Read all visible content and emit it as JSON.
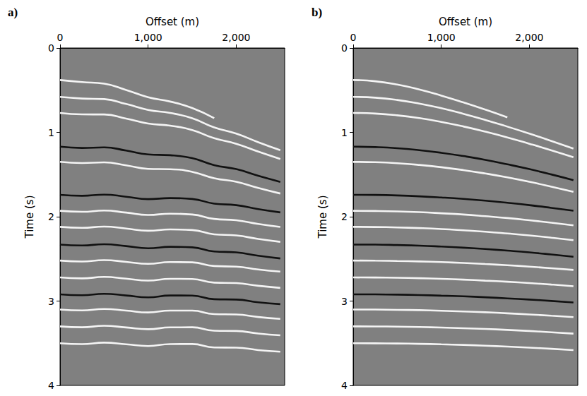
{
  "chart_data": [
    {
      "type": "line",
      "title": "a)",
      "xlabel": "Offset (m)",
      "ylabel": "Time (s)",
      "x": [
        0,
        250,
        500,
        750,
        1000,
        1250,
        1500,
        1750,
        2000,
        2250,
        2500
      ],
      "xlim": [
        0,
        2550
      ],
      "xticks": [
        0,
        1000,
        2000
      ],
      "ylim": [
        0,
        4
      ],
      "yticks": [
        0,
        1,
        2,
        3,
        4
      ],
      "grid": false,
      "series": [
        {
          "color": "#f4f4f4",
          "values": [
            0.38,
            0.404,
            0.423,
            0.497,
            0.584,
            0.635,
            0.711,
            0.832,
            null,
            null,
            null
          ]
        },
        {
          "color": "#f4f4f4",
          "values": [
            0.58,
            0.599,
            0.606,
            0.664,
            0.734,
            0.77,
            0.833,
            0.942,
            1.015,
            1.117,
            1.212
          ]
        },
        {
          "color": "#f4f4f4",
          "values": [
            0.77,
            0.787,
            0.788,
            0.836,
            0.896,
            0.92,
            0.972,
            1.07,
            1.135,
            1.228,
            1.315
          ]
        },
        {
          "color": "#111111",
          "values": [
            1.17,
            1.185,
            1.178,
            1.216,
            1.262,
            1.271,
            1.306,
            1.389,
            1.436,
            1.514,
            1.587
          ]
        },
        {
          "color": "#f4f4f4",
          "values": [
            1.35,
            1.364,
            1.356,
            1.391,
            1.433,
            1.437,
            1.468,
            1.544,
            1.586,
            1.659,
            1.725
          ]
        },
        {
          "color": "#111111",
          "values": [
            1.74,
            1.752,
            1.738,
            1.763,
            1.792,
            1.779,
            1.79,
            1.845,
            1.863,
            1.91,
            1.949
          ]
        },
        {
          "color": "#f4f4f4",
          "values": [
            1.93,
            1.942,
            1.927,
            1.951,
            1.979,
            1.964,
            1.974,
            2.026,
            2.042,
            2.086,
            2.122
          ]
        },
        {
          "color": "#f4f4f4",
          "values": [
            2.12,
            2.132,
            2.117,
            2.14,
            2.166,
            2.151,
            2.158,
            2.209,
            2.222,
            2.264,
            2.298
          ]
        },
        {
          "color": "#111111",
          "values": [
            2.33,
            2.341,
            2.326,
            2.348,
            2.374,
            2.357,
            2.363,
            2.412,
            2.423,
            2.463,
            2.495
          ]
        },
        {
          "color": "#f4f4f4",
          "values": [
            2.52,
            2.531,
            2.515,
            2.535,
            2.558,
            2.538,
            2.541,
            2.585,
            2.592,
            2.626,
            2.651
          ]
        },
        {
          "color": "#f4f4f4",
          "values": [
            2.72,
            2.731,
            2.714,
            2.734,
            2.757,
            2.736,
            2.738,
            2.781,
            2.787,
            2.819,
            2.844
          ]
        },
        {
          "color": "#111111",
          "values": [
            2.92,
            2.931,
            2.914,
            2.934,
            2.956,
            2.934,
            2.935,
            2.978,
            2.982,
            3.014,
            3.037
          ]
        },
        {
          "color": "#f4f4f4",
          "values": [
            3.1,
            3.111,
            3.094,
            3.113,
            3.135,
            3.113,
            3.113,
            3.155,
            3.159,
            3.189,
            3.211
          ]
        },
        {
          "color": "#f4f4f4",
          "values": [
            3.3,
            3.311,
            3.293,
            3.313,
            3.334,
            3.312,
            3.311,
            3.352,
            3.355,
            3.385,
            3.406
          ]
        },
        {
          "color": "#f4f4f4",
          "values": [
            3.5,
            3.511,
            3.493,
            3.512,
            3.533,
            3.51,
            3.509,
            3.55,
            3.552,
            3.581,
            3.601
          ]
        }
      ]
    },
    {
      "type": "line",
      "title": "b)",
      "xlabel": "Offset (m)",
      "ylabel": "Time (s)",
      "x": [
        0,
        250,
        500,
        750,
        1000,
        1250,
        1500,
        1750,
        2000,
        2250,
        2500
      ],
      "xlim": [
        0,
        2550
      ],
      "xticks": [
        0,
        1000,
        2000
      ],
      "ylim": [
        0,
        4
      ],
      "yticks": [
        0,
        1,
        2,
        3,
        4
      ],
      "grid": false,
      "series": [
        {
          "color": "#f4f4f4",
          "values": [
            0.38,
            0.394,
            0.433,
            0.492,
            0.564,
            0.645,
            0.731,
            0.822,
            null,
            null,
            null
          ]
        },
        {
          "color": "#f4f4f4",
          "values": [
            0.58,
            0.589,
            0.616,
            0.659,
            0.714,
            0.78,
            0.853,
            0.932,
            1.015,
            1.102,
            1.192
          ]
        },
        {
          "color": "#f4f4f4",
          "values": [
            0.77,
            0.777,
            0.798,
            0.831,
            0.876,
            0.93,
            0.992,
            1.06,
            1.135,
            1.213,
            1.295
          ]
        },
        {
          "color": "#111111",
          "values": [
            1.17,
            1.175,
            1.188,
            1.211,
            1.242,
            1.281,
            1.326,
            1.379,
            1.436,
            1.499,
            1.567
          ]
        },
        {
          "color": "#f4f4f4",
          "values": [
            1.35,
            1.354,
            1.366,
            1.386,
            1.413,
            1.447,
            1.488,
            1.534,
            1.586,
            1.644,
            1.705
          ]
        },
        {
          "color": "#111111",
          "values": [
            1.74,
            1.742,
            1.748,
            1.758,
            1.772,
            1.789,
            1.81,
            1.835,
            1.863,
            1.895,
            1.929
          ]
        },
        {
          "color": "#f4f4f4",
          "values": [
            1.93,
            1.932,
            1.937,
            1.946,
            1.959,
            1.974,
            1.994,
            2.016,
            2.042,
            2.071,
            2.102
          ]
        },
        {
          "color": "#f4f4f4",
          "values": [
            2.12,
            2.122,
            2.127,
            2.135,
            2.146,
            2.161,
            2.178,
            2.199,
            2.222,
            2.249,
            2.278
          ]
        },
        {
          "color": "#111111",
          "values": [
            2.33,
            2.331,
            2.336,
            2.343,
            2.354,
            2.367,
            2.383,
            2.402,
            2.423,
            2.448,
            2.475
          ]
        },
        {
          "color": "#f4f4f4",
          "values": [
            2.52,
            2.521,
            2.525,
            2.53,
            2.538,
            2.548,
            2.561,
            2.575,
            2.592,
            2.611,
            2.631
          ]
        },
        {
          "color": "#f4f4f4",
          "values": [
            2.72,
            2.721,
            2.724,
            2.729,
            2.737,
            2.746,
            2.758,
            2.771,
            2.787,
            2.804,
            2.824
          ]
        },
        {
          "color": "#111111",
          "values": [
            2.92,
            2.921,
            2.924,
            2.929,
            2.936,
            2.944,
            2.955,
            2.968,
            2.982,
            2.999,
            3.017
          ]
        },
        {
          "color": "#f4f4f4",
          "values": [
            3.1,
            3.101,
            3.104,
            3.108,
            3.115,
            3.123,
            3.133,
            3.145,
            3.159,
            3.174,
            3.191
          ]
        },
        {
          "color": "#f4f4f4",
          "values": [
            3.3,
            3.301,
            3.303,
            3.308,
            3.314,
            3.322,
            3.331,
            3.342,
            3.355,
            3.37,
            3.386
          ]
        },
        {
          "color": "#f4f4f4",
          "values": [
            3.5,
            3.501,
            3.503,
            3.507,
            3.513,
            3.52,
            3.529,
            3.54,
            3.552,
            3.566,
            3.581
          ]
        }
      ]
    }
  ]
}
